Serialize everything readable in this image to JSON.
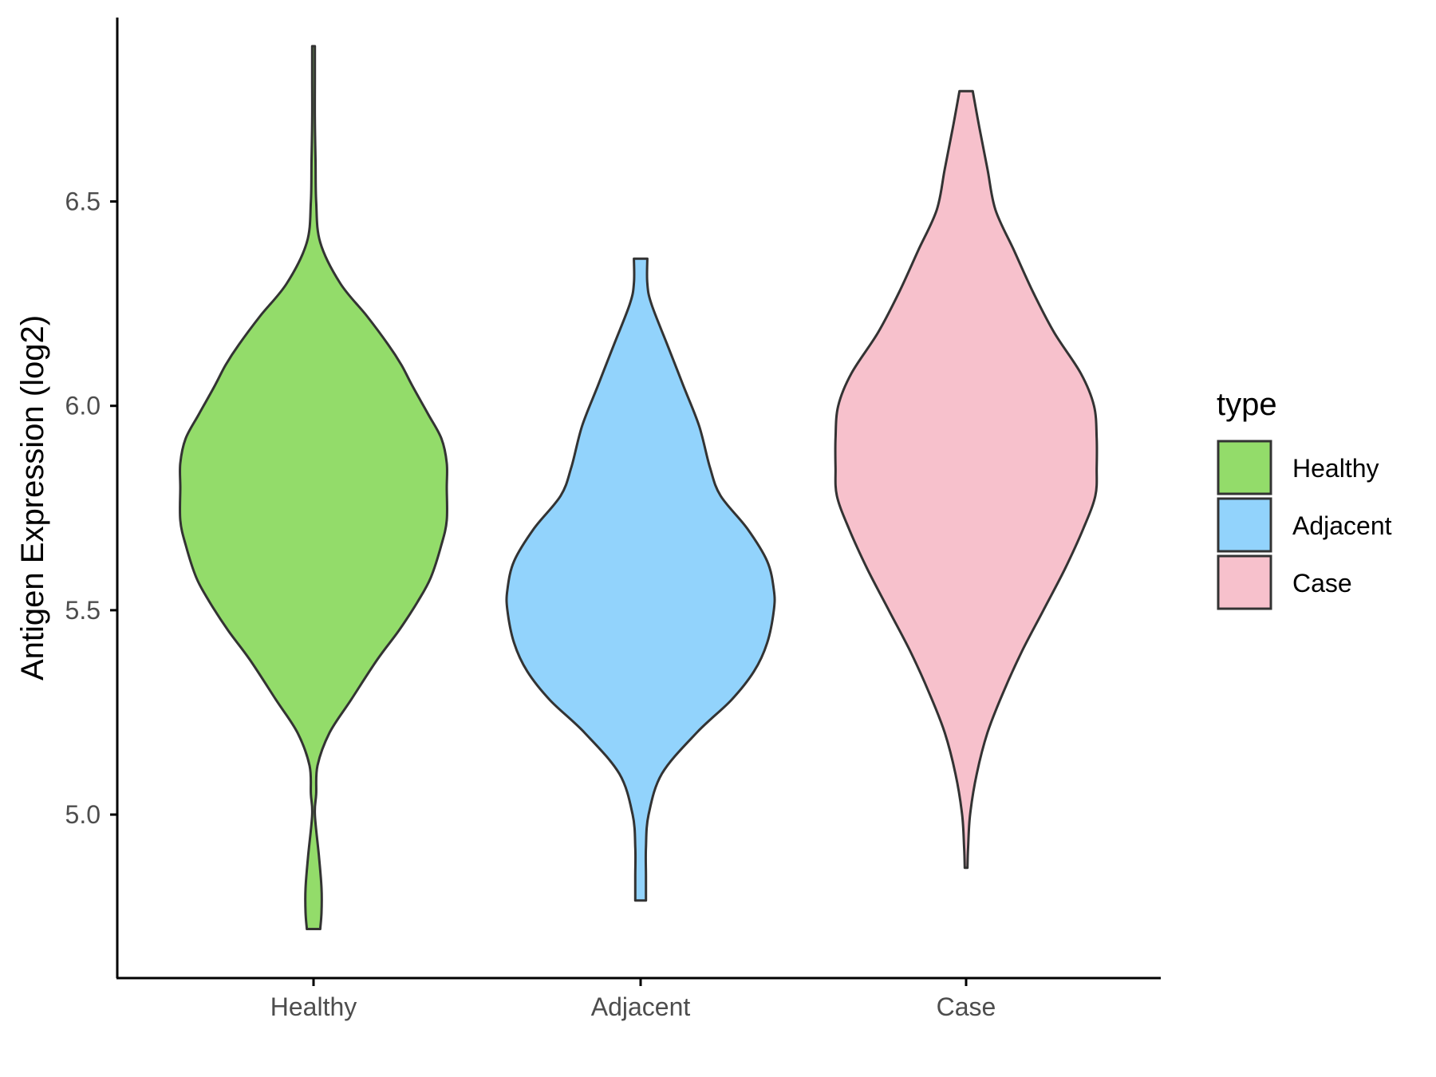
{
  "chart_data": {
    "type": "violin",
    "title": "",
    "xlabel": "",
    "ylabel": "Antigen Expression (log2)",
    "ylim": [
      4.6,
      6.95
    ],
    "y_ticks": [
      5.0,
      5.5,
      6.0,
      6.5
    ],
    "y_tick_labels": [
      "5.0",
      "5.5",
      "6.0",
      "6.5"
    ],
    "categories": [
      "Healthy",
      "Adjacent",
      "Case"
    ],
    "legend": {
      "title": "type",
      "position": "right",
      "entries": [
        "Healthy",
        "Adjacent",
        "Case"
      ]
    },
    "grid": false,
    "series": [
      {
        "name": "Healthy",
        "color": "#93DC6A",
        "min": 4.72,
        "max": 6.88,
        "density": [
          [
            4.72,
            0.05
          ],
          [
            4.76,
            0.06
          ],
          [
            4.82,
            0.06
          ],
          [
            4.9,
            0.04
          ],
          [
            5.0,
            0.01
          ],
          [
            5.05,
            0.02
          ],
          [
            5.12,
            0.03
          ],
          [
            5.2,
            0.12
          ],
          [
            5.28,
            0.28
          ],
          [
            5.38,
            0.48
          ],
          [
            5.45,
            0.64
          ],
          [
            5.52,
            0.78
          ],
          [
            5.58,
            0.88
          ],
          [
            5.66,
            0.96
          ],
          [
            5.72,
            1.0
          ],
          [
            5.8,
            1.0
          ],
          [
            5.86,
            1.0
          ],
          [
            5.92,
            0.96
          ],
          [
            5.98,
            0.86
          ],
          [
            6.05,
            0.74
          ],
          [
            6.1,
            0.66
          ],
          [
            6.15,
            0.56
          ],
          [
            6.22,
            0.4
          ],
          [
            6.3,
            0.2
          ],
          [
            6.4,
            0.05
          ],
          [
            6.5,
            0.02
          ],
          [
            6.6,
            0.015
          ],
          [
            6.7,
            0.01
          ],
          [
            6.8,
            0.01
          ],
          [
            6.88,
            0.01
          ]
        ]
      },
      {
        "name": "Adjacent",
        "color": "#92D3FC",
        "min": 4.79,
        "max": 6.36,
        "density": [
          [
            4.79,
            0.04
          ],
          [
            4.85,
            0.04
          ],
          [
            4.92,
            0.04
          ],
          [
            5.0,
            0.06
          ],
          [
            5.1,
            0.16
          ],
          [
            5.2,
            0.42
          ],
          [
            5.28,
            0.68
          ],
          [
            5.35,
            0.85
          ],
          [
            5.42,
            0.95
          ],
          [
            5.5,
            1.0
          ],
          [
            5.55,
            1.0
          ],
          [
            5.62,
            0.95
          ],
          [
            5.7,
            0.8
          ],
          [
            5.78,
            0.6
          ],
          [
            5.85,
            0.52
          ],
          [
            5.95,
            0.44
          ],
          [
            6.05,
            0.32
          ],
          [
            6.15,
            0.2
          ],
          [
            6.25,
            0.08
          ],
          [
            6.3,
            0.05
          ],
          [
            6.36,
            0.05
          ]
        ]
      },
      {
        "name": "Case",
        "color": "#F7C1CC",
        "min": 4.87,
        "max": 6.77,
        "density": [
          [
            4.87,
            0.01
          ],
          [
            4.92,
            0.015
          ],
          [
            5.0,
            0.03
          ],
          [
            5.1,
            0.08
          ],
          [
            5.2,
            0.16
          ],
          [
            5.3,
            0.28
          ],
          [
            5.4,
            0.42
          ],
          [
            5.5,
            0.58
          ],
          [
            5.6,
            0.74
          ],
          [
            5.7,
            0.88
          ],
          [
            5.78,
            0.97
          ],
          [
            5.85,
            0.98
          ],
          [
            5.92,
            0.98
          ],
          [
            6.0,
            0.96
          ],
          [
            6.08,
            0.86
          ],
          [
            6.18,
            0.66
          ],
          [
            6.28,
            0.5
          ],
          [
            6.38,
            0.36
          ],
          [
            6.48,
            0.22
          ],
          [
            6.58,
            0.16
          ],
          [
            6.68,
            0.1
          ],
          [
            6.77,
            0.05
          ]
        ]
      }
    ]
  }
}
